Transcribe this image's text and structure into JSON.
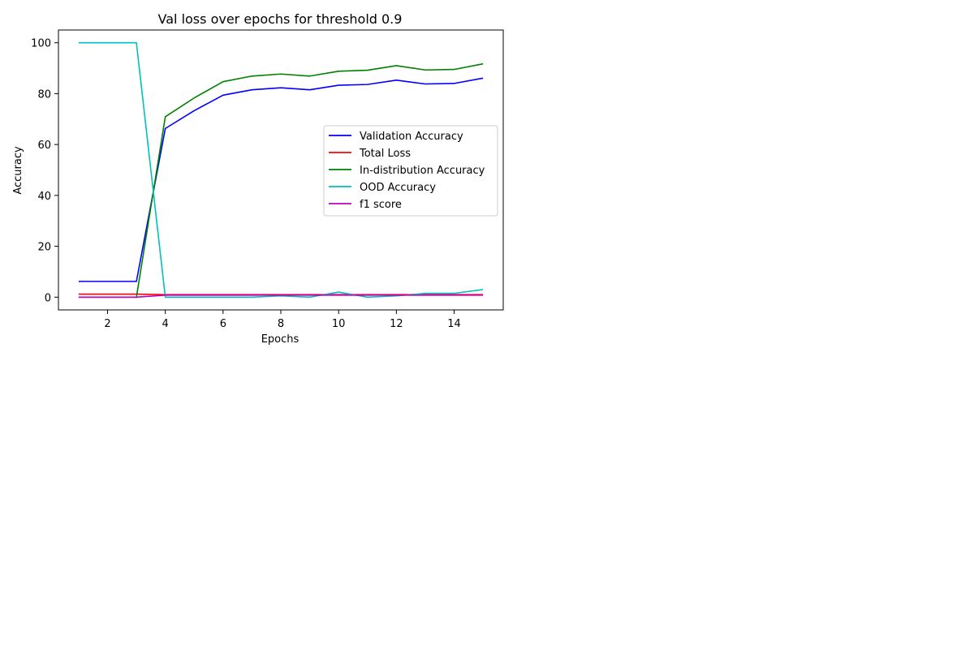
{
  "chart_data": {
    "type": "line",
    "title": "Val loss over epochs for threshold 0.9",
    "xlabel": "Epochs",
    "ylabel": "Accuracy",
    "xlim": [
      0.3,
      15.7
    ],
    "ylim": [
      -5,
      105
    ],
    "xticks": [
      2,
      4,
      6,
      8,
      10,
      12,
      14
    ],
    "yticks": [
      0,
      20,
      40,
      60,
      80,
      100
    ],
    "grid": false,
    "legend_position": "center-right",
    "x": [
      1,
      2,
      3,
      4,
      5,
      6,
      7,
      8,
      9,
      10,
      11,
      12,
      13,
      14,
      15
    ],
    "series": [
      {
        "name": "Validation Accuracy",
        "color": "#0000ff",
        "values": [
          6.2,
          6.2,
          6.2,
          66.3,
          73.3,
          79.4,
          81.5,
          82.3,
          81.5,
          83.3,
          83.6,
          85.3,
          83.8,
          84.0,
          86.1
        ]
      },
      {
        "name": "Total Loss",
        "color": "#ff0000",
        "values": [
          1.2,
          1.2,
          1.2,
          1.0,
          1.0,
          1.0,
          1.0,
          1.0,
          1.0,
          1.0,
          1.0,
          1.0,
          1.0,
          1.0,
          1.0
        ]
      },
      {
        "name": "In-distribution Accuracy",
        "color": "#008000",
        "values": [
          0.0,
          0.0,
          0.0,
          70.9,
          78.3,
          84.7,
          86.9,
          87.7,
          86.9,
          88.8,
          89.2,
          91.0,
          89.3,
          89.5,
          91.7
        ]
      },
      {
        "name": "OOD Accuracy",
        "color": "#00bfbf",
        "values": [
          100,
          100,
          100,
          0.0,
          0.0,
          0.0,
          0.0,
          0.5,
          0.0,
          2.0,
          0.0,
          0.5,
          1.5,
          1.5,
          3.0
        ]
      },
      {
        "name": "f1 score",
        "color": "#bf00bf",
        "values": [
          0.0,
          0.0,
          0.0,
          0.8,
          0.8,
          0.8,
          0.8,
          0.8,
          0.8,
          0.8,
          0.8,
          0.8,
          0.8,
          0.8,
          0.8
        ]
      }
    ]
  }
}
